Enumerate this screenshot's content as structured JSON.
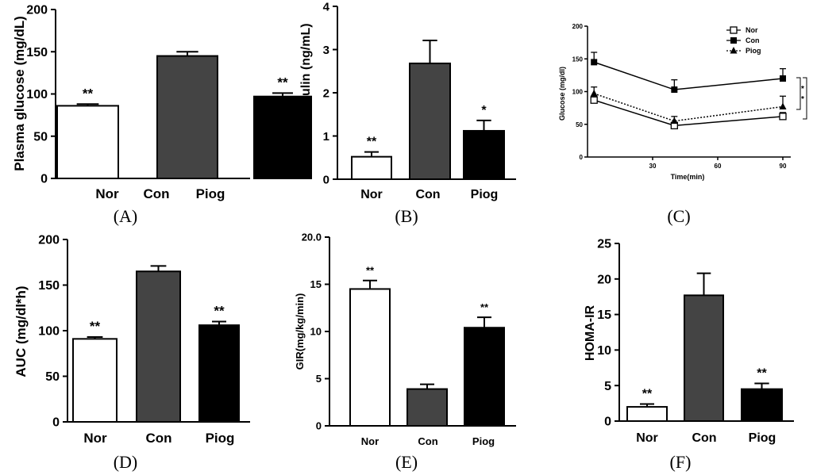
{
  "chart_data": [
    {
      "id": "A",
      "type": "bar",
      "panel_label": "(A)",
      "ylabel": "Plasma glucose (mg/dL)",
      "xlabel": "",
      "ylim": [
        0,
        200
      ],
      "yticks": [
        0,
        50,
        100,
        150,
        200
      ],
      "categories": [
        "Nor",
        "Con",
        "Piog"
      ],
      "values": [
        86,
        145,
        97
      ],
      "errors": [
        2,
        5,
        4
      ],
      "fills": [
        "#ffffff",
        "#444444",
        "#000000"
      ],
      "annotations": [
        "**",
        "",
        "**"
      ]
    },
    {
      "id": "B",
      "type": "bar",
      "panel_label": "(B)",
      "ylabel": "Plasma insulin (ng/mL)",
      "xlabel": "",
      "ylim": [
        0,
        4
      ],
      "yticks": [
        0,
        1,
        2,
        3,
        4
      ],
      "categories": [
        "Nor",
        "Con",
        "Piog"
      ],
      "values": [
        0.52,
        2.68,
        1.12
      ],
      "errors": [
        0.11,
        0.53,
        0.24
      ],
      "fills": [
        "#ffffff",
        "#444444",
        "#000000"
      ],
      "annotations": [
        "**",
        "",
        "*"
      ]
    },
    {
      "id": "C",
      "type": "line",
      "panel_label": "(C)",
      "ylabel": "Glucose (mg/dl)",
      "xlabel": "Time(min)",
      "xlim": [
        0,
        90
      ],
      "xticks": [
        30,
        60,
        90
      ],
      "ylim": [
        0,
        200
      ],
      "yticks": [
        0,
        50,
        100,
        150,
        200
      ],
      "x": [
        3,
        40,
        90
      ],
      "series": [
        {
          "name": "Nor",
          "values": [
            87,
            48,
            62
          ],
          "errors": [
            4,
            5,
            6
          ],
          "marker": "open-square",
          "line": "solid"
        },
        {
          "name": "Con",
          "values": [
            145,
            103,
            120
          ],
          "errors": [
            15,
            15,
            15
          ],
          "marker": "filled-square",
          "line": "solid"
        },
        {
          "name": "Piog",
          "values": [
            97,
            55,
            77
          ],
          "errors": [
            10,
            7,
            16
          ],
          "marker": "filled-triangle",
          "line": "dotted"
        }
      ],
      "bracket_annotations": [
        "*",
        "*"
      ]
    },
    {
      "id": "D",
      "type": "bar",
      "panel_label": "(D)",
      "ylabel": "AUC (mg/dl*h)",
      "xlabel": "",
      "ylim": [
        0,
        200
      ],
      "yticks": [
        0,
        50,
        100,
        150,
        200
      ],
      "categories": [
        "Nor",
        "Con",
        "Piog"
      ],
      "values": [
        91,
        165,
        106
      ],
      "errors": [
        2,
        6,
        4
      ],
      "fills": [
        "#ffffff",
        "#444444",
        "#000000"
      ],
      "annotations": [
        "**",
        "",
        "**"
      ]
    },
    {
      "id": "E",
      "type": "bar",
      "panel_label": "(E)",
      "ylabel": "GIR(mg/kg/min)",
      "xlabel": "",
      "ylim": [
        0,
        20
      ],
      "yticks": [
        0,
        5,
        10,
        15,
        20
      ],
      "ytick_labels": [
        "0",
        "5",
        "10",
        "15",
        "20.0"
      ],
      "categories": [
        "Nor",
        "Con",
        "Piog"
      ],
      "values": [
        14.5,
        3.9,
        10.4
      ],
      "errors": [
        0.9,
        0.5,
        1.1
      ],
      "fills": [
        "#ffffff",
        "#444444",
        "#000000"
      ],
      "annotations": [
        "**",
        "",
        "**"
      ]
    },
    {
      "id": "F",
      "type": "bar",
      "panel_label": "(F)",
      "ylabel": "HOMA-IR",
      "xlabel": "",
      "ylim": [
        0,
        25
      ],
      "yticks": [
        0,
        5,
        10,
        15,
        20,
        25
      ],
      "categories": [
        "Nor",
        "Con",
        "Piog"
      ],
      "values": [
        2.0,
        17.7,
        4.5
      ],
      "errors": [
        0.4,
        3.1,
        0.8
      ],
      "fills": [
        "#ffffff",
        "#444444",
        "#000000"
      ],
      "annotations": [
        "**",
        "",
        "**"
      ]
    }
  ]
}
